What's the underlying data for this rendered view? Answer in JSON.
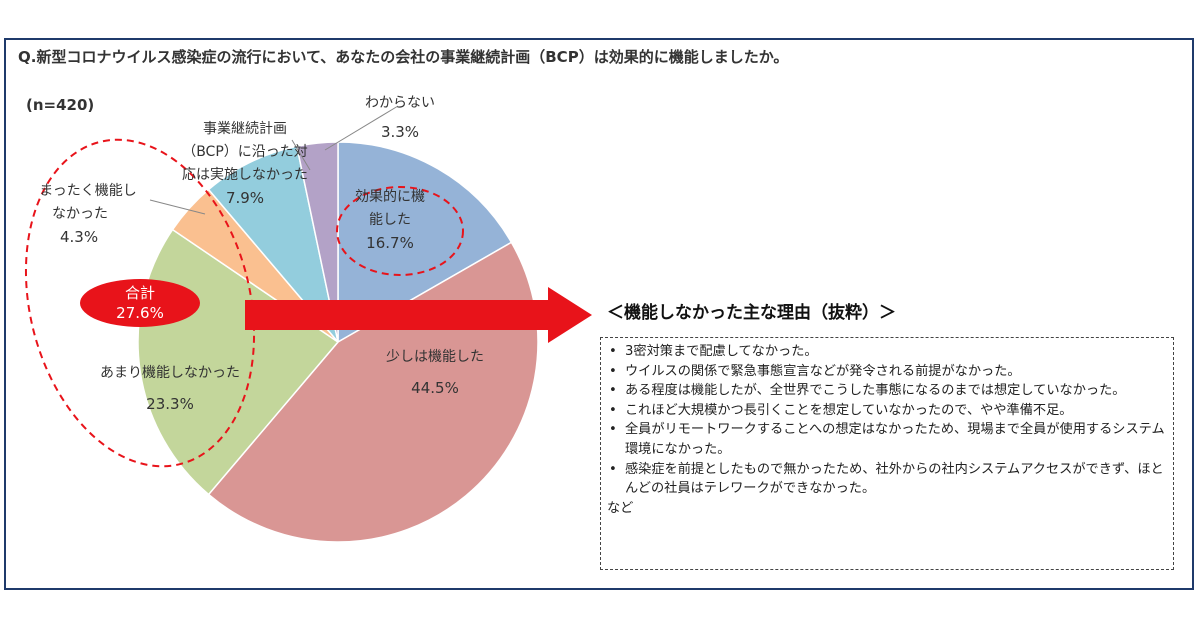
{
  "chart_data": {
    "type": "pie",
    "title": "Q.新型コロナウイルス感染症の流行において、あなたの会社の事業継続計画（BCP）は効果的に機能しましたか。",
    "sample_size": "(n=420)",
    "series": [
      {
        "name": "効果的に機能した",
        "label_lines": [
          "効果的に機",
          "能した"
        ],
        "value": 16.7,
        "value_label": "16.7%",
        "color": "#95b3d7"
      },
      {
        "name": "少しは機能した",
        "label_lines": [
          "少しは機能した"
        ],
        "value": 44.5,
        "value_label": "44.5%",
        "color": "#d99694"
      },
      {
        "name": "あまり機能しなかった",
        "label_lines": [
          "あまり機能しなかった"
        ],
        "value": 23.3,
        "value_label": "23.3%",
        "color": "#c3d69b"
      },
      {
        "name": "まったく機能しなかった",
        "label_lines": [
          "まったく機能し",
          "なかった"
        ],
        "value": 4.3,
        "value_label": "4.3%",
        "color": "#fac090"
      },
      {
        "name": "事業継続計画（BCP）に沿った対応は実施しなかった",
        "label_lines": [
          "事業継続計画",
          "（BCP）に沿った対",
          "応は実施しなかった"
        ],
        "value": 7.9,
        "value_label": "7.9%",
        "color": "#93cddd"
      },
      {
        "name": "わからない",
        "label_lines": [
          "わからない"
        ],
        "value": 3.3,
        "value_label": "3.3%",
        "color": "#b3a2c7"
      }
    ],
    "total_callout": {
      "label": "合計",
      "value": "27.6%"
    }
  },
  "reasons": {
    "title": "＜機能しなかった主な理由（抜粋）＞",
    "items": [
      "3密対策まで配慮してなかった。",
      "ウイルスの関係で緊急事態宣言などが発令される前提がなかった。",
      "ある程度は機能したが、全世界でこうした事態になるのまでは想定していなかった。",
      "これほど大規模かつ長引くことを想定していなかったので、やや準備不足。",
      "全員がリモートワークすることへの想定はなかったため、現場まで全員が使用するシステム環境になかった。",
      "感染症を前提としたもので無かったため、社外からの社内システムアクセスができず、ほとんどの社員はテレワークができなかった。"
    ],
    "etc": "など"
  },
  "colors": {
    "frame": "#1f3a6b",
    "highlight": "#e8131a"
  }
}
